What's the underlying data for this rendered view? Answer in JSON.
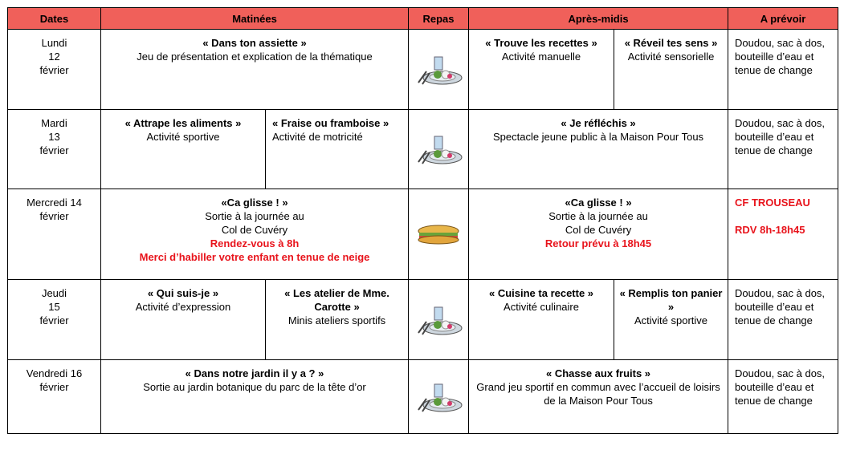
{
  "header": [
    "Dates",
    "Matinées",
    "Repas",
    "Après-midis",
    "A prévoir"
  ],
  "rows": [
    {
      "date": [
        "Lundi",
        "12",
        "février"
      ],
      "morning": [
        {
          "title": "« Dans ton assiette »",
          "text": [
            "Jeu de présentation et explication de la thématique"
          ]
        }
      ],
      "afternoon": [
        {
          "title": "« Trouve les recettes »",
          "text": [
            "Activité manuelle"
          ]
        },
        {
          "title": "« Réveil tes sens »",
          "text": [
            "Activité sensorielle"
          ]
        }
      ],
      "provisions": [
        "Doudou, sac à dos, bouteille d’eau et tenue de change"
      ]
    },
    {
      "date": [
        "Mardi",
        "13",
        "février"
      ],
      "morning": [
        {
          "title": "« Attrape les aliments »",
          "text": [
            "Activité sportive"
          ]
        },
        {
          "title": "« Fraise ou framboise »",
          "text": [
            "Activité de motricité"
          ]
        }
      ],
      "afternoon": [
        {
          "title": "« Je réfléchis »",
          "text": [
            "Spectacle jeune public à la Maison Pour Tous"
          ]
        }
      ],
      "provisions": [
        "Doudou, sac à dos, bouteille d’eau et tenue de change"
      ]
    },
    {
      "date": [
        "Mercredi 14",
        "février"
      ],
      "morning": [
        {
          "title": "«Ca glisse ! »",
          "text": [
            "Sortie à la journée au",
            "Col de Cuvéry"
          ],
          "notes": [
            "Rendez-vous à 8h",
            "Merci  d’habiller votre enfant en tenue de neige"
          ]
        }
      ],
      "afternoon": [
        {
          "title": "«Ca glisse ! »",
          "text": [
            "Sortie à la journée au",
            "Col de Cuvéry"
          ],
          "notes": [
            "Retour prévu à 18h45"
          ]
        }
      ],
      "notes": [
        "CF TROUSEAU",
        "RDV 8h-18h45"
      ]
    },
    {
      "date": [
        "Jeudi",
        "15",
        "février"
      ],
      "morning": [
        {
          "title": "« Qui suis-je »",
          "text": [
            "Activité d’expression"
          ]
        },
        {
          "title": "« Les atelier de Mme. Carotte »",
          "text": [
            "Minis ateliers sportifs"
          ]
        }
      ],
      "afternoon": [
        {
          "title": "« Cuisine ta recette »",
          "text": [
            "Activité culinaire"
          ]
        },
        {
          "title": "« Remplis ton panier »",
          "text": [
            "Activité sportive"
          ]
        }
      ],
      "provisions": [
        "Doudou, sac à dos, bouteille d’eau et tenue de change"
      ]
    },
    {
      "date": [
        "Vendredi 16",
        "février"
      ],
      "morning": [
        {
          "title": "« Dans notre jardin il y a ? »",
          "text": [
            "Sortie au jardin botanique du parc de la tête d’or"
          ]
        }
      ],
      "afternoon": [
        {
          "title": "« Chasse aux fruits »",
          "text": [
            "Grand jeu sportif en commun avec l’accueil de loisirs de la Maison Pour Tous"
          ]
        }
      ],
      "provisions": [
        "Doudou, sac à dos, bouteille d’eau et tenue de change"
      ]
    }
  ]
}
